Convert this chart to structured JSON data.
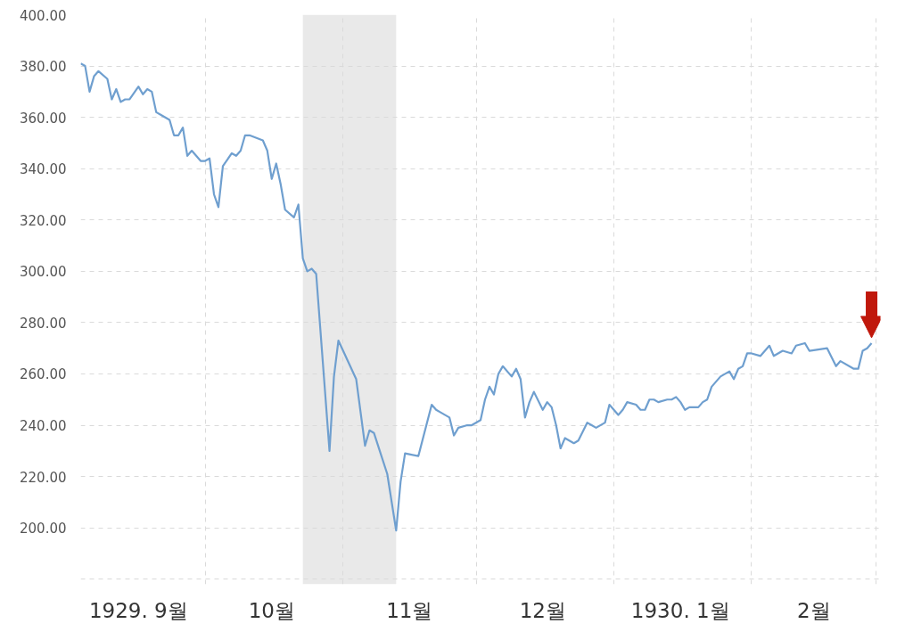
{
  "chart_data": {
    "type": "line",
    "color": "#6f9fcf",
    "x": [
      "1929-09-03",
      "1929-09-04",
      "1929-09-05",
      "1929-09-06",
      "1929-09-07",
      "1929-09-09",
      "1929-09-10",
      "1929-09-11",
      "1929-09-12",
      "1929-09-13",
      "1929-09-14",
      "1929-09-16",
      "1929-09-17",
      "1929-09-18",
      "1929-09-19",
      "1929-09-20",
      "1929-09-21",
      "1929-09-23",
      "1929-09-24",
      "1929-09-25",
      "1929-09-26",
      "1929-09-27",
      "1929-09-28",
      "1929-09-30",
      "1929-10-01",
      "1929-10-02",
      "1929-10-03",
      "1929-10-04",
      "1929-10-05",
      "1929-10-07",
      "1929-10-08",
      "1929-10-09",
      "1929-10-10",
      "1929-10-11",
      "1929-10-14",
      "1929-10-15",
      "1929-10-16",
      "1929-10-17",
      "1929-10-18",
      "1929-10-19",
      "1929-10-21",
      "1929-10-22",
      "1929-10-23",
      "1929-10-24",
      "1929-10-25",
      "1929-10-26",
      "1929-10-29",
      "1929-10-30",
      "1929-10-31",
      "1929-11-04",
      "1929-11-06",
      "1929-11-07",
      "1929-11-08",
      "1929-11-11",
      "1929-11-13",
      "1929-11-14",
      "1929-11-15",
      "1929-11-18",
      "1929-11-21",
      "1929-11-22",
      "1929-11-23",
      "1929-11-25",
      "1929-11-26",
      "1929-11-27",
      "1929-11-29",
      "1929-11-30",
      "1929-12-02",
      "1929-12-03",
      "1929-12-04",
      "1929-12-05",
      "1929-12-06",
      "1929-12-07",
      "1929-12-09",
      "1929-12-10",
      "1929-12-11",
      "1929-12-12",
      "1929-12-13",
      "1929-12-14",
      "1929-12-16",
      "1929-12-17",
      "1929-12-18",
      "1929-12-19",
      "1929-12-20",
      "1929-12-21",
      "1929-12-23",
      "1929-12-24",
      "1929-12-26",
      "1929-12-27",
      "1929-12-28",
      "1929-12-30",
      "1929-12-31",
      "1930-01-02",
      "1930-01-03",
      "1930-01-04",
      "1930-01-06",
      "1930-01-07",
      "1930-01-08",
      "1930-01-09",
      "1930-01-10",
      "1930-01-11",
      "1930-01-13",
      "1930-01-14",
      "1930-01-15",
      "1930-01-16",
      "1930-01-17",
      "1930-01-18",
      "1930-01-20",
      "1930-01-21",
      "1930-01-22",
      "1930-01-23",
      "1930-01-25",
      "1930-01-27",
      "1930-01-28",
      "1930-01-29",
      "1930-01-30",
      "1930-01-31",
      "1930-02-01",
      "1930-02-03",
      "1930-02-05",
      "1930-02-06",
      "1930-02-08",
      "1930-02-10",
      "1930-02-11",
      "1930-02-13",
      "1930-02-14",
      "1930-02-18",
      "1930-02-20",
      "1930-02-21",
      "1930-02-24",
      "1930-02-25",
      "1930-02-26",
      "1930-02-27",
      "1930-02-28"
    ],
    "values": [
      381,
      380,
      370,
      376,
      378,
      375,
      367,
      371,
      366,
      367,
      367,
      372,
      369,
      371,
      370,
      362,
      361,
      359,
      353,
      353,
      356,
      345,
      347,
      343,
      343,
      344,
      330,
      325,
      341,
      346,
      345,
      347,
      353,
      353,
      351,
      347,
      336,
      342,
      334,
      324,
      321,
      326,
      305,
      300,
      301,
      299,
      230,
      259,
      273,
      258,
      232,
      238,
      237,
      221,
      199,
      218,
      229,
      228,
      248,
      246,
      245,
      243,
      236,
      239,
      240,
      240,
      242,
      250,
      255,
      252,
      260,
      263,
      259,
      262,
      258,
      243,
      249,
      253,
      246,
      249,
      247,
      240,
      231,
      235,
      233,
      234,
      241,
      240,
      239,
      241,
      248,
      244,
      246,
      249,
      248,
      246,
      246,
      250,
      250,
      249,
      250,
      250,
      251,
      249,
      246,
      247,
      247,
      249,
      250,
      255,
      259,
      261,
      258,
      262,
      263,
      268,
      268,
      267,
      271,
      267,
      269,
      268,
      271,
      272,
      269,
      270,
      263,
      265,
      262,
      262,
      269,
      270,
      272
    ],
    "xlim": [
      "1929-09-03",
      "1930-03-02"
    ],
    "ylim": [
      178,
      400
    ],
    "xticks": [
      {
        "value": "1929-10-01",
        "label": null
      },
      {
        "value": "1929-11-01",
        "label": null
      },
      {
        "value": "1929-12-01",
        "label": null
      },
      {
        "value": "1930-01-01",
        "label": null
      },
      {
        "value": "1930-02-01",
        "label": null
      },
      {
        "value": "1930-03-01",
        "label": null
      },
      {
        "value": "1929-09-16",
        "label": "1929. 9월"
      },
      {
        "value": "1929-10-16",
        "label": "10월"
      },
      {
        "value": "1929-11-16",
        "label": "11월"
      },
      {
        "value": "1929-12-16",
        "label": "12월"
      },
      {
        "value": "1930-01-16",
        "label": "1930. 1월"
      },
      {
        "value": "1930-02-15",
        "label": "2월"
      }
    ],
    "yticks": [
      {
        "value": 180,
        "label": null
      },
      {
        "value": 200,
        "label": "200.00"
      },
      {
        "value": 220,
        "label": "220.00"
      },
      {
        "value": 240,
        "label": "240.00"
      },
      {
        "value": 260,
        "label": "260.00"
      },
      {
        "value": 280,
        "label": "280.00"
      },
      {
        "value": 300,
        "label": "300.00"
      },
      {
        "value": 320,
        "label": "320.00"
      },
      {
        "value": 340,
        "label": "340.00"
      },
      {
        "value": 360,
        "label": "360.00"
      },
      {
        "value": 380,
        "label": "380.00"
      },
      {
        "value": 400,
        "label": "400.00"
      }
    ],
    "grid": true,
    "bands": [
      {
        "axis": "x",
        "from": "1929-10-23",
        "to": "1929-11-13",
        "color": "#e9e9e9"
      }
    ]
  }
}
